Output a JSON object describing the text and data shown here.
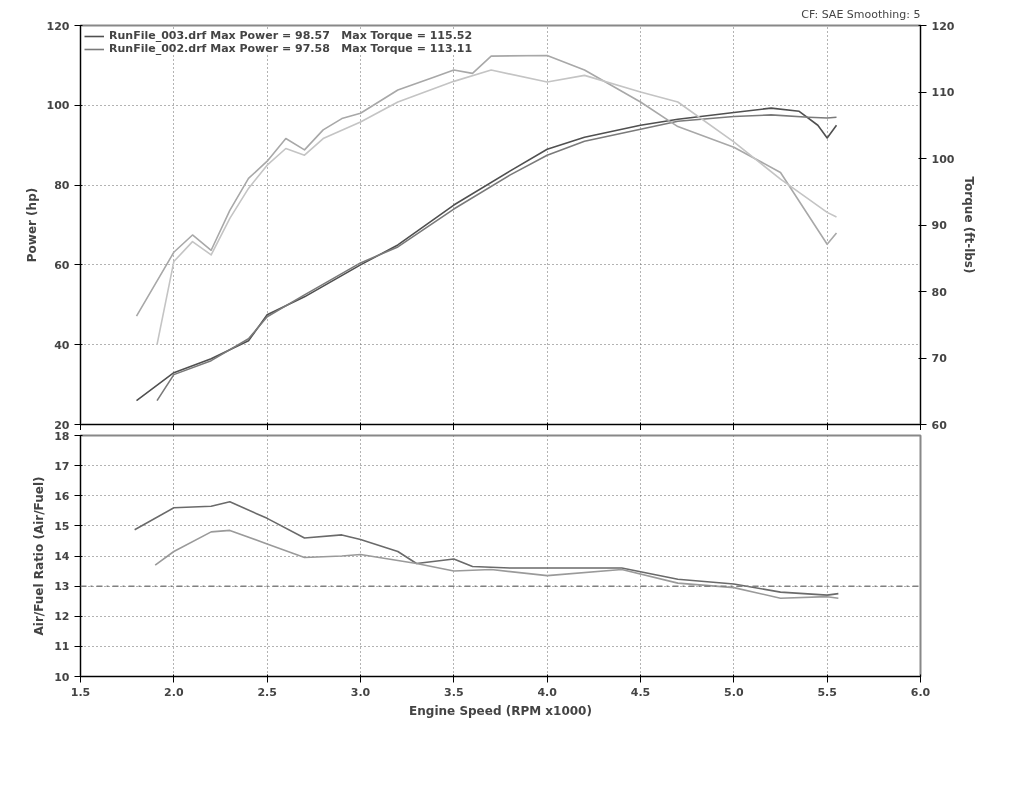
{
  "chart_data": [
    {
      "type": "line",
      "annotations": [
        "CF: SAE Smoothing: 5"
      ],
      "ylabel": "Power (hp)",
      "y2label": "Torque (ft-lbs)",
      "xlim": [
        1.5,
        6.0
      ],
      "xticks": [
        {
          "value": 1.5,
          "label": null
        },
        {
          "value": 2.0,
          "label": null
        },
        {
          "value": 2.5,
          "label": null
        },
        {
          "value": 3.0,
          "label": null
        },
        {
          "value": 3.5,
          "label": null
        },
        {
          "value": 4.0,
          "label": null
        },
        {
          "value": 4.5,
          "label": null
        },
        {
          "value": 5.0,
          "label": null
        },
        {
          "value": 5.5,
          "label": null
        },
        {
          "value": 6.0,
          "label": null
        }
      ],
      "ylim": [
        20,
        120
      ],
      "yticks": [
        20,
        40,
        60,
        80,
        100,
        120
      ],
      "y2lim": [
        60,
        120
      ],
      "y2ticks": [
        60,
        70,
        80,
        90,
        100,
        110,
        120
      ],
      "grid": true,
      "legend": "top left",
      "tick_labels": "y",
      "line_style": "solid",
      "marker": "none",
      "series": [
        {
          "name": "RunFile_003.drf Max Power = 98.57   Max Torque = 115.52",
          "color": "#505050",
          "x": [
            1.8,
            1.9,
            2.0,
            2.2,
            2.4,
            2.5,
            2.7,
            3.0,
            3.2,
            3.5,
            3.8,
            4.0,
            4.2,
            4.5,
            4.7,
            5.0,
            5.2,
            5.35,
            5.45,
            5.5,
            5.55
          ],
          "values": [
            26,
            29.5,
            33,
            36.5,
            41,
            47.5,
            52,
            60,
            65,
            75,
            83.5,
            89,
            92,
            95,
            96.5,
            98.2,
            99.3,
            98.5,
            95,
            91.8,
            95
          ]
        },
        {
          "name": "RunFile_002.drf Max Power = 97.58   Max Torque = 113.11",
          "color": "#7a7a7a",
          "x": [
            1.91,
            2.0,
            2.2,
            2.4,
            2.5,
            2.7,
            3.0,
            3.2,
            3.5,
            3.8,
            4.0,
            4.2,
            4.5,
            4.7,
            5.0,
            5.2,
            5.4,
            5.5,
            5.55
          ],
          "values": [
            26,
            32.5,
            36,
            41.5,
            47,
            52.5,
            60.5,
            64.5,
            74,
            82.5,
            87.5,
            91,
            94,
            96,
            97.2,
            97.6,
            97,
            96.8,
            97
          ]
        },
        {
          "color": "#a8a8a8",
          "axis": "y2",
          "x": [
            1.8,
            2.0,
            2.1,
            2.2,
            2.3,
            2.4,
            2.5,
            2.6,
            2.7,
            2.8,
            2.9,
            3.0,
            3.2,
            3.4,
            3.5,
            3.6,
            3.7,
            4.0,
            4.2,
            4.5,
            4.7,
            5.0,
            5.25,
            5.5,
            5.55
          ],
          "values": [
            76.3,
            85.9,
            88.5,
            86.2,
            92.2,
            97,
            99.6,
            103,
            101.3,
            104.3,
            106,
            106.8,
            110.3,
            112.3,
            113.3,
            112.8,
            115.4,
            115.5,
            113.3,
            108.5,
            104.8,
            101.7,
            97.9,
            87.1,
            88.8
          ]
        },
        {
          "color": "#c4c4c4",
          "axis": "y2",
          "x": [
            1.91,
            2.0,
            2.1,
            2.2,
            2.3,
            2.4,
            2.5,
            2.6,
            2.7,
            2.8,
            3.0,
            3.2,
            3.5,
            3.7,
            4.0,
            4.2,
            4.5,
            4.7,
            5.0,
            5.25,
            5.5,
            5.55
          ],
          "values": [
            72,
            84.5,
            87.5,
            85.5,
            91,
            95.5,
            99,
            101.5,
            100.5,
            103,
            105.5,
            108.5,
            111.6,
            113.3,
            111.5,
            112.5,
            110,
            108.5,
            102.5,
            96.9,
            91.9,
            91.2
          ]
        }
      ]
    },
    {
      "type": "line",
      "xlabel": "Engine Speed (RPM x1000)",
      "ylabel": "Air/Fuel Ratio (Air/Fuel)",
      "xlim": [
        1.5,
        6.0
      ],
      "xticks": [
        {
          "value": 1.5,
          "label": "1.5"
        },
        {
          "value": 2.0,
          "label": "2.0"
        },
        {
          "value": 2.5,
          "label": "2.5"
        },
        {
          "value": 3.0,
          "label": "3.0"
        },
        {
          "value": 3.5,
          "label": "3.5"
        },
        {
          "value": 4.0,
          "label": "4.0"
        },
        {
          "value": 4.5,
          "label": "4.5"
        },
        {
          "value": 5.0,
          "label": "5.0"
        },
        {
          "value": 5.5,
          "label": "5.5"
        },
        {
          "value": 6.0,
          "label": "6.0"
        }
      ],
      "ylim": [
        10,
        18
      ],
      "yticks": [
        10,
        11,
        12,
        13,
        14,
        15,
        16,
        17,
        18
      ],
      "grid": true,
      "line_style": "solid",
      "marker": "none",
      "ref_lines": [
        {
          "axis": "y",
          "value": 13,
          "label": null,
          "color": "#808080",
          "line_style": "dashdot"
        }
      ],
      "series": [
        {
          "color": "#6a6a6a",
          "x": [
            1.79,
            2.0,
            2.2,
            2.3,
            2.5,
            2.7,
            2.9,
            3.0,
            3.2,
            3.3,
            3.5,
            3.6,
            3.8,
            4.0,
            4.4,
            4.7,
            5.0,
            5.25,
            5.5,
            5.56
          ],
          "values": [
            14.87,
            15.6,
            15.65,
            15.8,
            15.25,
            14.6,
            14.7,
            14.55,
            14.15,
            13.75,
            13.9,
            13.65,
            13.6,
            13.6,
            13.6,
            13.23,
            13.07,
            12.8,
            12.7,
            12.75
          ]
        },
        {
          "color": "#9a9a9a",
          "x": [
            1.9,
            2.0,
            2.2,
            2.3,
            2.5,
            2.7,
            2.9,
            3.0,
            3.3,
            3.5,
            3.7,
            4.0,
            4.4,
            4.7,
            5.0,
            5.25,
            5.5,
            5.56
          ],
          "values": [
            13.7,
            14.15,
            14.8,
            14.85,
            14.4,
            13.95,
            14.0,
            14.05,
            13.75,
            13.5,
            13.55,
            13.35,
            13.55,
            13.1,
            12.95,
            12.6,
            12.65,
            12.6
          ]
        }
      ]
    }
  ]
}
